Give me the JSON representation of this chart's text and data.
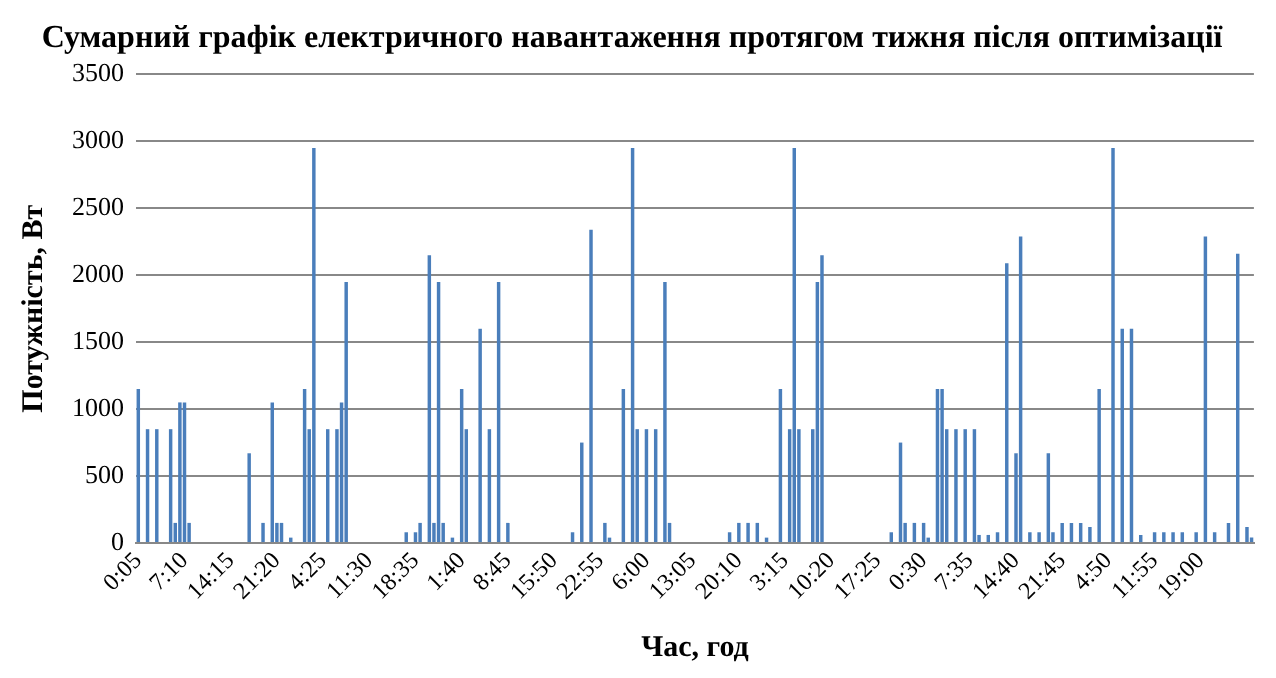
{
  "chart_data": {
    "type": "bar",
    "title": "Сумарний графік електричного навантаження протягом тижня після оптимізації",
    "xlabel": "Час, год",
    "ylabel": "Потужність, Вт",
    "categories": [
      "0:05",
      null,
      null,
      null,
      null,
      null,
      null,
      null,
      null,
      null,
      "7:10",
      null,
      null,
      null,
      null,
      null,
      null,
      null,
      null,
      null,
      "14:15",
      null,
      null,
      null,
      null,
      null,
      null,
      null,
      null,
      null,
      "21:20",
      null,
      null,
      null,
      null,
      null,
      null,
      null,
      null,
      null,
      "4:25",
      null,
      null,
      null,
      null,
      null,
      null,
      null,
      null,
      null,
      "11:30",
      null,
      null,
      null,
      null,
      null,
      null,
      null,
      null,
      null,
      "18:35",
      null,
      null,
      null,
      null,
      null,
      null,
      null,
      null,
      null,
      "1:40",
      null,
      null,
      null,
      null,
      null,
      null,
      null,
      null,
      null,
      "8:45",
      null,
      null,
      null,
      null,
      null,
      null,
      null,
      null,
      null,
      "15:50",
      null,
      null,
      null,
      null,
      null,
      null,
      null,
      null,
      null,
      "22:55",
      null,
      null,
      null,
      null,
      null,
      null,
      null,
      null,
      null,
      "6:00",
      null,
      null,
      null,
      null,
      null,
      null,
      null,
      null,
      null,
      "13:05",
      null,
      null,
      null,
      null,
      null,
      null,
      null,
      null,
      null,
      "20:10",
      null,
      null,
      null,
      null,
      null,
      null,
      null,
      null,
      null,
      "3:15",
      null,
      null,
      null,
      null,
      null,
      null,
      null,
      null,
      null,
      "10:20",
      null,
      null,
      null,
      null,
      null,
      null,
      null,
      null,
      null,
      "17:25",
      null,
      null,
      null,
      null,
      null,
      null,
      null,
      null,
      null,
      "0:30",
      null,
      null,
      null,
      null,
      null,
      null,
      null,
      null,
      null,
      "7:35",
      null,
      null,
      null,
      null,
      null,
      null,
      null,
      null,
      null,
      "14:40",
      null,
      null,
      null,
      null,
      null,
      null,
      null,
      null,
      null,
      "21:45",
      null,
      null,
      null,
      null,
      null,
      null,
      null,
      null,
      null,
      "4:50",
      null,
      null,
      null,
      null,
      null,
      null,
      null,
      null,
      null,
      "11:55",
      null,
      null,
      null,
      null,
      null,
      null,
      null,
      null,
      null,
      "19:00",
      null,
      null,
      null,
      null,
      null,
      null,
      null,
      null,
      null,
      null,
      null
    ],
    "values": [
      1150,
      0,
      850,
      0,
      850,
      0,
      0,
      850,
      150,
      1050,
      1050,
      150,
      0,
      0,
      0,
      0,
      0,
      0,
      0,
      0,
      0,
      0,
      0,
      0,
      670,
      0,
      0,
      150,
      0,
      1050,
      150,
      150,
      0,
      40,
      0,
      0,
      1150,
      850,
      2950,
      0,
      0,
      850,
      0,
      850,
      1050,
      1950,
      0,
      0,
      0,
      0,
      0,
      0,
      0,
      0,
      0,
      0,
      0,
      0,
      80,
      0,
      80,
      150,
      0,
      2150,
      150,
      1950,
      150,
      0,
      40,
      0,
      1150,
      850,
      0,
      0,
      1600,
      0,
      850,
      0,
      1950,
      0,
      150,
      0,
      0,
      0,
      0,
      0,
      0,
      0,
      0,
      0,
      0,
      0,
      0,
      0,
      80,
      0,
      750,
      0,
      2340,
      0,
      0,
      150,
      40,
      0,
      0,
      1150,
      0,
      2950,
      850,
      0,
      850,
      0,
      850,
      0,
      1950,
      150,
      0,
      0,
      0,
      0,
      0,
      0,
      0,
      0,
      0,
      0,
      0,
      0,
      80,
      0,
      150,
      0,
      150,
      0,
      150,
      0,
      40,
      0,
      0,
      1150,
      0,
      850,
      2950,
      850,
      0,
      0,
      850,
      1950,
      2150,
      0,
      0,
      0,
      0,
      0,
      0,
      0,
      0,
      0,
      0,
      0,
      0,
      0,
      0,
      80,
      0,
      750,
      150,
      0,
      150,
      0,
      150,
      40,
      0,
      1150,
      1150,
      850,
      0,
      850,
      0,
      850,
      0,
      850,
      60,
      0,
      60,
      0,
      80,
      0,
      2090,
      0,
      670,
      2290,
      0,
      80,
      0,
      80,
      0,
      670,
      80,
      0,
      150,
      0,
      150,
      0,
      150,
      0,
      120,
      0,
      1150,
      0,
      0,
      2950,
      0,
      1600,
      0,
      1600,
      0,
      60,
      0,
      0,
      80,
      0,
      80,
      0,
      80,
      0,
      80,
      0,
      0,
      80,
      0,
      2290,
      0,
      80,
      0,
      0,
      150,
      0,
      2160,
      0,
      120,
      40
    ],
    "color": "#4a7ebb",
    "ylim": [
      0,
      3500
    ],
    "yticks": [
      0,
      500,
      1000,
      1500,
      2000,
      2500,
      3000,
      3500
    ],
    "grid": "y",
    "legend": false
  }
}
